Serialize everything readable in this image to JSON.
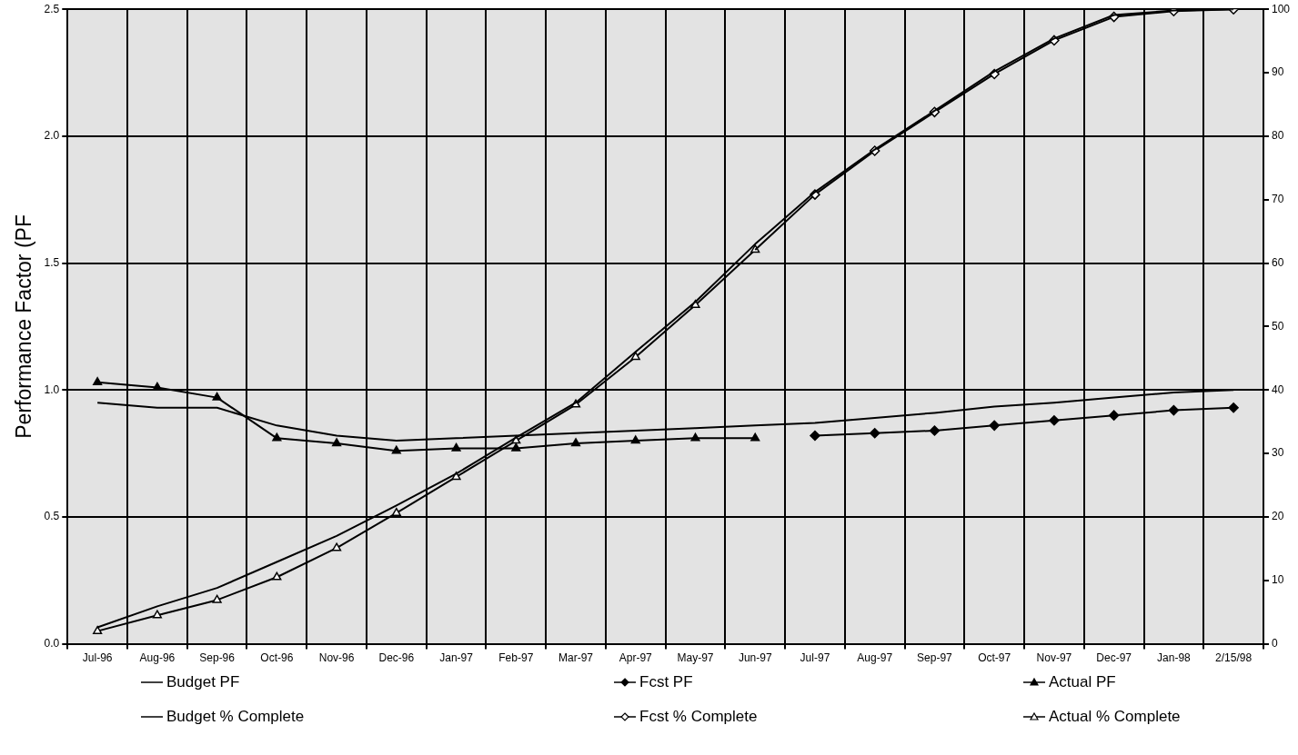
{
  "chart_data": {
    "type": "line",
    "ylabel": "Performance Factor (PF",
    "categories": [
      "Jul-96",
      "Aug-96",
      "Sep-96",
      "Oct-96",
      "Nov-96",
      "Dec-96",
      "Jan-97",
      "Feb-97",
      "Mar-97",
      "Apr-97",
      "May-97",
      "Jun-97",
      "Jul-97",
      "Aug-97",
      "Sep-97",
      "Oct-97",
      "Nov-97",
      "Dec-97",
      "Jan-98",
      "2/15/98"
    ],
    "series": [
      {
        "name": "Budget PF",
        "color": "#000000",
        "marker": "none",
        "values": [
          0.95,
          0.93,
          0.93,
          0.86,
          0.82,
          0.8,
          0.81,
          0.82,
          0.83,
          0.84,
          0.85,
          0.86,
          0.87,
          0.89,
          0.91,
          0.935,
          0.95,
          0.97,
          0.99,
          1.0
        ]
      },
      {
        "name": "Fcst PF",
        "color": "#000000",
        "marker": "diamond",
        "values": [
          null,
          null,
          null,
          null,
          null,
          null,
          null,
          null,
          null,
          null,
          null,
          null,
          0.82,
          0.83,
          0.84,
          0.86,
          0.88,
          0.9,
          0.92,
          0.93
        ]
      },
      {
        "name": "Actual PF",
        "color": "#000000",
        "marker": "triangle",
        "values": [
          1.03,
          1.01,
          0.97,
          0.81,
          0.79,
          0.76,
          0.77,
          0.77,
          0.79,
          0.8,
          0.81,
          0.81,
          null,
          null,
          null,
          null,
          null,
          null,
          null,
          null
        ]
      },
      {
        "name": "Budget % Complete",
        "color": "#000000",
        "marker": "none",
        "axis": "y2",
        "values": [
          2.6,
          5.9,
          8.8,
          12.9,
          17.0,
          21.8,
          26.8,
          32.5,
          38.0,
          46,
          53.9,
          63.0,
          71.2,
          77.9,
          84.0,
          90.2,
          95.4,
          99.1,
          99.8,
          100
        ]
      },
      {
        "name": "Fcst % Complete",
        "color": "#000000",
        "marker": "diamond",
        "axis": "y2",
        "values": [
          null,
          null,
          null,
          null,
          null,
          null,
          null,
          null,
          null,
          null,
          null,
          62.1,
          70.8,
          77.7,
          83.8,
          89.8,
          95.1,
          98.8,
          99.7,
          100
        ]
      },
      {
        "name": "Actual % Complete",
        "color": "#000000",
        "marker": "triangle",
        "axis": "y2",
        "values": [
          2.0,
          4.5,
          6.9,
          10.5,
          15.1,
          20.6,
          26.3,
          32.0,
          37.7,
          45.2,
          53.4,
          62.1,
          null,
          null,
          null,
          null,
          null,
          null,
          null,
          null
        ]
      }
    ],
    "ylim": [
      0,
      2.5
    ],
    "yticks": [
      {
        "value": 0,
        "label": "0.0"
      },
      {
        "value": 0.5,
        "label": "0.5"
      },
      {
        "value": 1,
        "label": "1.0"
      },
      {
        "value": 1.5,
        "label": "1.5"
      },
      {
        "value": 2,
        "label": "2.0"
      },
      {
        "value": 2.5,
        "label": "2.5"
      }
    ],
    "y2lim": [
      0,
      100
    ],
    "y2ticks": [
      0,
      10,
      20,
      30,
      40,
      50,
      60,
      70,
      80,
      90,
      100
    ],
    "grid": true,
    "legend": "bottom",
    "line_style": "solid"
  }
}
